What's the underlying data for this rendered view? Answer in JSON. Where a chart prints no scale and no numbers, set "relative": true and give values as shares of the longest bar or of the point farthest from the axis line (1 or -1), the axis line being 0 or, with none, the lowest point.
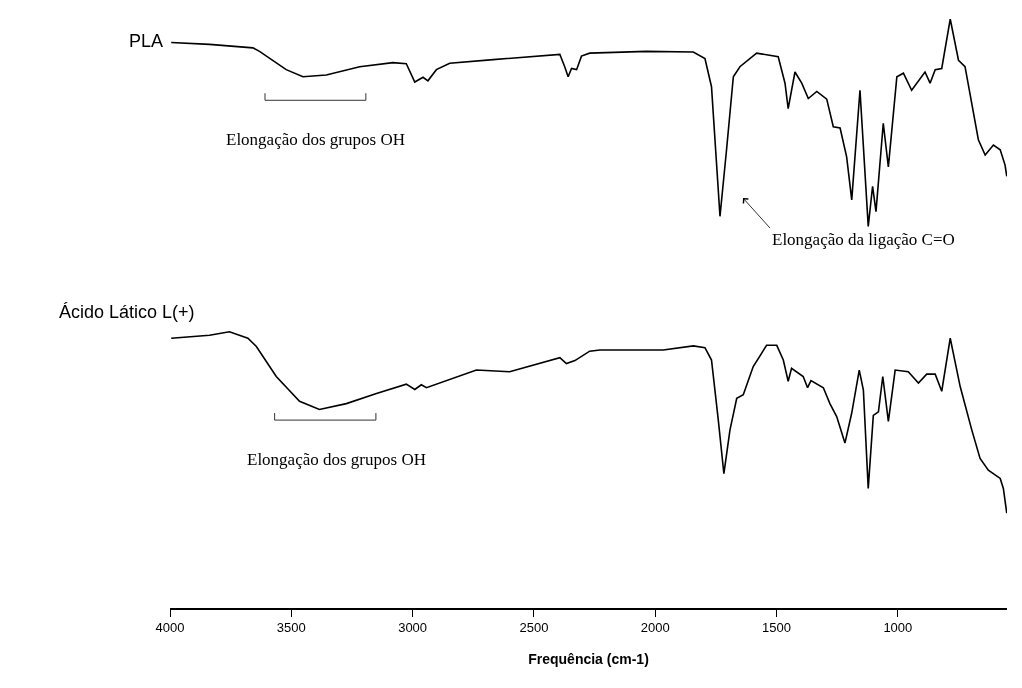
{
  "chart_data": {
    "type": "line",
    "relative": true,
    "xlabel": "Frequência (cm-1)",
    "xlim": [
      4000,
      550
    ],
    "xticks": [
      4000,
      3500,
      3000,
      2500,
      2000,
      1500,
      1000
    ],
    "series": [
      {
        "name": "PLA",
        "color": "#000000",
        "x": [
          3995,
          3837,
          3658,
          3631,
          3521,
          3452,
          3356,
          3218,
          3081,
          3026,
          2991,
          2957,
          2937,
          2902,
          2847,
          2668,
          2393,
          2373,
          2359,
          2345,
          2324,
          2304,
          2270,
          2036,
          1843,
          1795,
          1768,
          1733,
          1706,
          1678,
          1651,
          1582,
          1493,
          1465,
          1452,
          1424,
          1396,
          1369,
          1334,
          1293,
          1266,
          1238,
          1211,
          1190,
          1156,
          1122,
          1104,
          1090,
          1060,
          1039,
          1004,
          977,
          943,
          888,
          867,
          846,
          819,
          784,
          750,
          723,
          668,
          640,
          606,
          578,
          558,
          551
        ],
        "values": [
          0.96,
          0.957,
          0.951,
          0.945,
          0.914,
          0.902,
          0.905,
          0.919,
          0.926,
          0.924,
          0.893,
          0.901,
          0.895,
          0.914,
          0.925,
          0.931,
          0.94,
          0.919,
          0.902,
          0.916,
          0.914,
          0.937,
          0.942,
          0.945,
          0.944,
          0.933,
          0.885,
          0.665,
          0.778,
          0.902,
          0.919,
          0.942,
          0.936,
          0.891,
          0.848,
          0.91,
          0.891,
          0.865,
          0.877,
          0.864,
          0.817,
          0.815,
          0.766,
          0.693,
          0.879,
          0.648,
          0.716,
          0.673,
          0.823,
          0.749,
          0.902,
          0.908,
          0.879,
          0.91,
          0.891,
          0.914,
          0.916,
          1.0,
          0.93,
          0.919,
          0.795,
          0.769,
          0.786,
          0.778,
          0.752,
          0.733
        ]
      },
      {
        "name": "Ácido Lático L(+)",
        "color": "#000000",
        "x": [
          3995,
          3837,
          3755,
          3679,
          3644,
          3562,
          3466,
          3384,
          3273,
          3149,
          3026,
          2991,
          2964,
          2943,
          2737,
          2600,
          2393,
          2366,
          2331,
          2270,
          2228,
          1967,
          1843,
          1795,
          1768,
          1740,
          1717,
          1692,
          1664,
          1637,
          1596,
          1541,
          1499,
          1472,
          1452,
          1438,
          1390,
          1372,
          1358,
          1307,
          1280,
          1252,
          1218,
          1190,
          1159,
          1142,
          1122,
          1101,
          1080,
          1062,
          1039,
          1011,
          957,
          915,
          881,
          846,
          819,
          784,
          743,
          695,
          661,
          627,
          578,
          565,
          551
        ],
        "values": [
          0.458,
          0.463,
          0.469,
          0.458,
          0.444,
          0.393,
          0.351,
          0.337,
          0.347,
          0.364,
          0.38,
          0.371,
          0.379,
          0.374,
          0.404,
          0.401,
          0.425,
          0.415,
          0.42,
          0.436,
          0.438,
          0.438,
          0.445,
          0.442,
          0.421,
          0.319,
          0.228,
          0.302,
          0.356,
          0.362,
          0.41,
          0.446,
          0.446,
          0.421,
          0.385,
          0.407,
          0.393,
          0.374,
          0.386,
          0.374,
          0.347,
          0.325,
          0.28,
          0.331,
          0.404,
          0.37,
          0.203,
          0.327,
          0.333,
          0.393,
          0.317,
          0.404,
          0.401,
          0.382,
          0.397,
          0.397,
          0.368,
          0.458,
          0.376,
          0.302,
          0.254,
          0.234,
          0.22,
          0.203,
          0.161
        ]
      }
    ],
    "annotations": [
      "Elongação dos grupos OH",
      "Elongação da ligação C=O",
      "Elongação dos grupos OH"
    ]
  }
}
